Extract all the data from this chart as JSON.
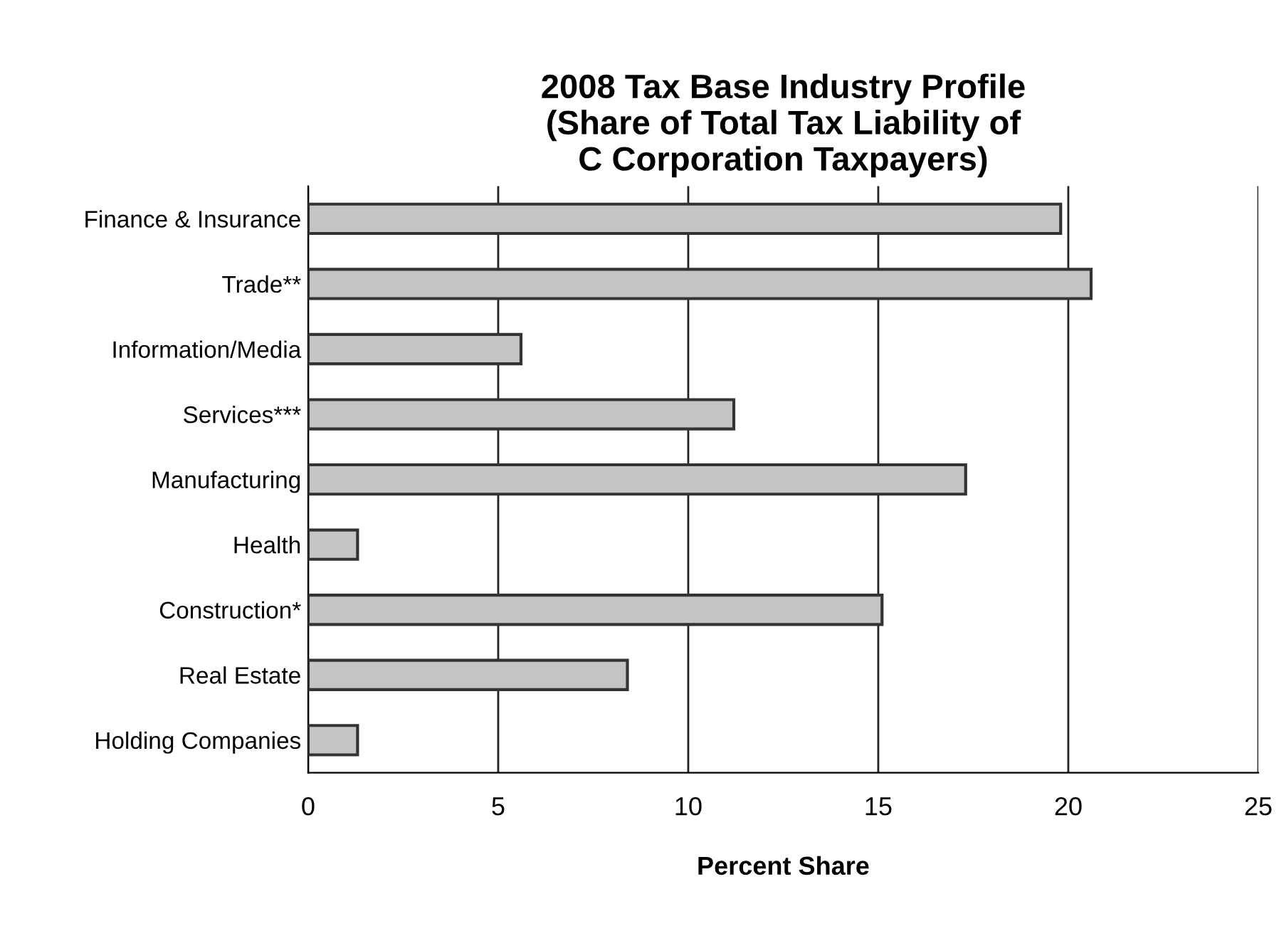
{
  "chart_data": {
    "type": "bar",
    "orientation": "horizontal",
    "title": "2008 Tax Base Industry Profile\n(Share of Total Tax Liability of\nC Corporation Taxpayers)",
    "xlabel": "Percent Share",
    "categories": [
      "Finance & Insurance",
      "Trade**",
      "Information/Media",
      "Services***",
      "Manufacturing",
      "Health",
      "Construction*",
      "Real Estate",
      "Holding Companies"
    ],
    "values": [
      19.8,
      20.6,
      5.6,
      11.2,
      17.3,
      1.3,
      15.1,
      8.4,
      1.3
    ],
    "color": "#c4c4c4",
    "xlim": [
      0,
      25
    ],
    "xticks": [
      0,
      5,
      10,
      15,
      20,
      25
    ],
    "grid": "x"
  }
}
